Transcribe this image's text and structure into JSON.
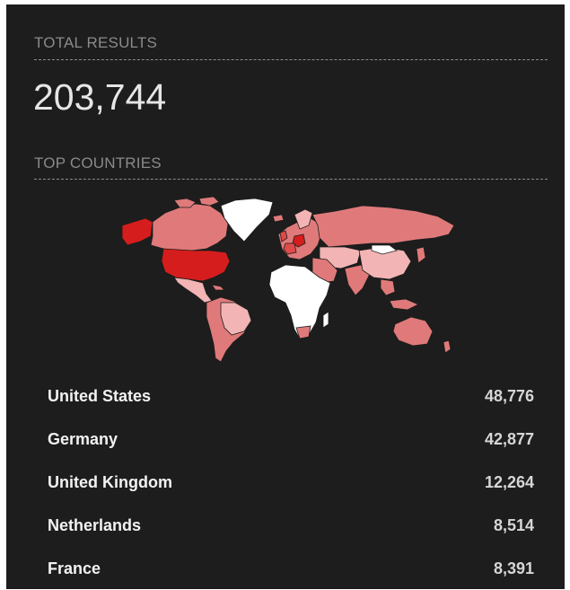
{
  "total": {
    "label": "TOTAL RESULTS",
    "value": "203,744"
  },
  "top_countries": {
    "label": "TOP COUNTRIES",
    "rows": [
      {
        "country": "United States",
        "count": "48,776"
      },
      {
        "country": "Germany",
        "count": "42,877"
      },
      {
        "country": "United Kingdom",
        "count": "12,264"
      },
      {
        "country": "Netherlands",
        "count": "8,514"
      },
      {
        "country": "France",
        "count": "8,391"
      }
    ]
  },
  "map": {
    "colors": {
      "highest": "#d61d1d",
      "high": "#e04a4a",
      "medium": "#e07a7a",
      "low": "#f2b4b4",
      "none": "#ffffff",
      "border": "#1d1d1d"
    }
  }
}
